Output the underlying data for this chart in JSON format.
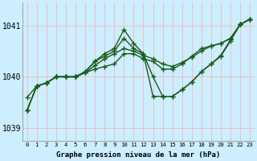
{
  "title": "Graphe pression niveau de la mer (hPa)",
  "ylabel_ticks": [
    1039,
    1040,
    1041
  ],
  "xlim": [
    -0.5,
    23.5
  ],
  "ylim": [
    1038.75,
    1041.45
  ],
  "bg_color": "#cceeff",
  "grid_color": "#ffaaaa",
  "line_color": "#1a5c1a",
  "marker": "+",
  "markersize": 4,
  "linewidth": 1.0,
  "series": [
    [
      1039.35,
      1039.82,
      1039.88,
      1040.0,
      1040.0,
      1040.0,
      1040.08,
      1040.15,
      1040.2,
      1040.25,
      1040.45,
      1040.45,
      1040.35,
      1040.3,
      1040.15,
      1040.15,
      1040.25,
      1040.4,
      1040.55,
      1040.6,
      1040.65,
      1040.75,
      1041.02,
      1041.12
    ],
    [
      1039.35,
      1039.82,
      1039.88,
      1040.0,
      1040.0,
      1040.0,
      1040.08,
      1040.22,
      1040.35,
      1040.45,
      1040.55,
      1040.5,
      1040.42,
      1040.35,
      1040.25,
      1040.2,
      1040.28,
      1040.38,
      1040.5,
      1040.6,
      1040.65,
      1040.75,
      1041.02,
      1041.12
    ],
    [
      1039.6,
      1039.82,
      1039.88,
      1040.0,
      1040.0,
      1040.0,
      1040.1,
      1040.3,
      1040.4,
      1040.5,
      1040.75,
      1040.55,
      1040.45,
      1040.0,
      1039.62,
      1039.62,
      1039.75,
      1039.9,
      1040.1,
      1040.25,
      1040.4,
      1040.7,
      1041.02,
      1041.12
    ],
    [
      1039.35,
      1039.82,
      1039.88,
      1040.0,
      1040.0,
      1040.0,
      1040.1,
      1040.3,
      1040.45,
      1040.55,
      1040.92,
      1040.65,
      1040.45,
      1039.62,
      1039.62,
      1039.62,
      1039.75,
      1039.9,
      1040.1,
      1040.25,
      1040.42,
      1040.72,
      1041.02,
      1041.12
    ]
  ]
}
